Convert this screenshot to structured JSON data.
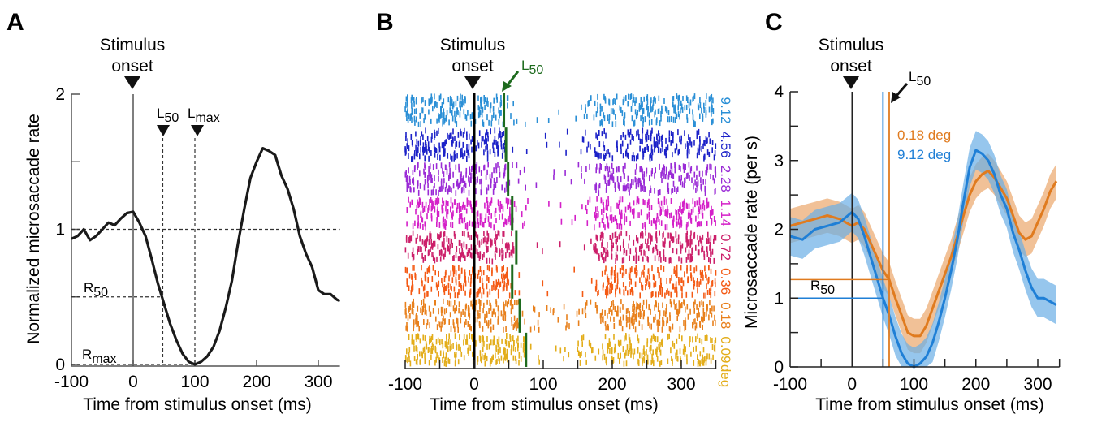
{
  "chart_data": [
    {
      "panel": "A",
      "type": "line",
      "title": "",
      "xlabel": "Time from stimulus onset (ms)",
      "ylabel": "Normalized microsaccade rate",
      "xlim": [
        -100,
        335
      ],
      "ylim": [
        0,
        2
      ],
      "xticks": [
        -100,
        0,
        100,
        200,
        300
      ],
      "xtick_labels": [
        "-100",
        "0",
        "100",
        "200",
        "300"
      ],
      "yticks": [
        0,
        0.5,
        1,
        1.5,
        2
      ],
      "ytick_labels": [
        "0",
        "",
        "1",
        "",
        "2"
      ],
      "grid": false,
      "annotations": {
        "stimulus_onset": {
          "label_line1": "Stimulus",
          "label_line2": "onset",
          "x": 0
        },
        "L50": {
          "label": "L",
          "sub": "50",
          "x": 48
        },
        "Lmax": {
          "label": "L",
          "sub": "max",
          "x": 100
        },
        "R50": {
          "label": "R",
          "sub": "50",
          "y": 0.5
        },
        "Rmax": {
          "label": "R",
          "sub": "max",
          "y": 0
        },
        "reference_line_y": 1
      },
      "series": [
        {
          "name": "Normalized rate",
          "color": "#1a1a1a",
          "x": [
            -100,
            -90,
            -80,
            -70,
            -60,
            -50,
            -40,
            -30,
            -20,
            -10,
            0,
            10,
            20,
            30,
            40,
            50,
            60,
            70,
            80,
            90,
            100,
            110,
            120,
            130,
            140,
            150,
            160,
            170,
            180,
            190,
            200,
            210,
            220,
            230,
            240,
            250,
            260,
            270,
            280,
            290,
            300,
            310,
            320,
            330,
            335
          ],
          "y": [
            0.93,
            0.95,
            1.0,
            0.92,
            0.95,
            1.0,
            1.05,
            1.03,
            1.08,
            1.12,
            1.13,
            1.05,
            0.95,
            0.78,
            0.6,
            0.45,
            0.3,
            0.18,
            0.08,
            0.02,
            0.0,
            0.02,
            0.06,
            0.13,
            0.25,
            0.42,
            0.62,
            0.9,
            1.15,
            1.38,
            1.5,
            1.6,
            1.58,
            1.55,
            1.4,
            1.3,
            1.15,
            0.95,
            0.82,
            0.72,
            0.55,
            0.52,
            0.52,
            0.48,
            0.47
          ]
        }
      ]
    },
    {
      "panel": "B",
      "type": "scatter",
      "subtype": "raster",
      "title": "",
      "xlabel": "Time from stimulus onset (ms)",
      "ylabel": "",
      "xlim": [
        -100,
        350
      ],
      "xticks": [
        -100,
        -50,
        0,
        50,
        100,
        150,
        200,
        250,
        300,
        350
      ],
      "xtick_labels": [
        "-100",
        "",
        "0",
        "",
        "100",
        "",
        "200",
        "",
        "300",
        ""
      ],
      "annotations": {
        "stimulus_onset": {
          "label_line1": "Stimulus",
          "label_line2": "onset",
          "x": 0
        },
        "L50_arrow": {
          "label": "L",
          "sub": "50",
          "color": "#1e6b1e"
        }
      },
      "unit_label": "deg",
      "rows": [
        {
          "eccentricity": "9.12",
          "color": "#2a8fd6",
          "L50_ms": 43
        },
        {
          "eccentricity": "4.56",
          "color": "#1c22c8",
          "L50_ms": 46
        },
        {
          "eccentricity": "2.28",
          "color": "#9a2ad6",
          "L50_ms": 49
        },
        {
          "eccentricity": "1.14",
          "color": "#d420c8",
          "L50_ms": 55
        },
        {
          "eccentricity": "0.72",
          "color": "#cc1f6a",
          "L50_ms": 61
        },
        {
          "eccentricity": "0.36",
          "color": "#f45a14",
          "L50_ms": 55
        },
        {
          "eccentricity": "0.18",
          "color": "#e8801c",
          "L50_ms": 66
        },
        {
          "eccentricity": "0.09",
          "color": "#e3ad1a",
          "L50_ms": 75
        }
      ]
    },
    {
      "panel": "C",
      "type": "line",
      "title": "",
      "xlabel": "Time from stimulus onset (ms)",
      "ylabel": "Microsaccade rate (per s)",
      "xlim": [
        -100,
        335
      ],
      "ylim": [
        0,
        4
      ],
      "xticks": [
        -100,
        -50,
        0,
        50,
        100,
        150,
        200,
        250,
        300,
        335
      ],
      "xtick_labels": [
        "-100",
        "",
        "0",
        "",
        "100",
        "",
        "200",
        "",
        "300",
        ""
      ],
      "yticks": [
        0,
        0.5,
        1,
        1.5,
        2,
        2.5,
        3,
        3.5,
        4
      ],
      "ytick_labels": [
        "0",
        "",
        "1",
        "",
        "2",
        "",
        "3",
        "",
        "4"
      ],
      "grid": false,
      "legend": {
        "placement": "top-center",
        "entries": [
          "0.18 deg",
          "9.12 deg"
        ]
      },
      "annotations": {
        "stimulus_onset": {
          "label_line1": "Stimulus",
          "label_line2": "onset",
          "x": 0
        },
        "L50_arrow": {
          "label": "L",
          "sub": "50"
        },
        "R50": {
          "label": "R",
          "sub": "50"
        }
      },
      "series": [
        {
          "name": "0.18 deg",
          "color": "#e07b1f",
          "band_color": "#eba66b",
          "L50_ms": 60,
          "R50": 1.27,
          "x": [
            -100,
            -80,
            -60,
            -40,
            -20,
            0,
            10,
            20,
            30,
            40,
            50,
            60,
            70,
            80,
            90,
            100,
            110,
            120,
            130,
            140,
            150,
            160,
            170,
            180,
            190,
            200,
            210,
            220,
            230,
            240,
            250,
            260,
            270,
            280,
            290,
            300,
            310,
            320,
            330
          ],
          "y": [
            2.05,
            2.1,
            2.15,
            2.2,
            2.15,
            2.05,
            2.1,
            2.0,
            1.8,
            1.6,
            1.4,
            1.27,
            1.0,
            0.75,
            0.5,
            0.45,
            0.45,
            0.6,
            0.85,
            1.1,
            1.35,
            1.6,
            1.9,
            2.2,
            2.5,
            2.7,
            2.8,
            2.85,
            2.75,
            2.6,
            2.45,
            2.2,
            1.95,
            1.85,
            1.9,
            2.1,
            2.3,
            2.55,
            2.7
          ],
          "band_halfwidth": 0.25
        },
        {
          "name": "9.12 deg",
          "color": "#1f7fd6",
          "band_color": "#6aaee6",
          "L50_ms": 50,
          "R50": 1.0,
          "x": [
            -100,
            -80,
            -60,
            -40,
            -20,
            0,
            10,
            20,
            30,
            40,
            50,
            60,
            70,
            80,
            90,
            100,
            110,
            120,
            130,
            140,
            150,
            160,
            170,
            180,
            190,
            200,
            210,
            220,
            230,
            240,
            250,
            260,
            270,
            280,
            290,
            300,
            310,
            320,
            330
          ],
          "y": [
            1.9,
            1.85,
            2.0,
            2.05,
            2.1,
            2.25,
            2.15,
            1.9,
            1.6,
            1.3,
            1.0,
            0.75,
            0.45,
            0.2,
            0.05,
            0.0,
            0.05,
            0.15,
            0.35,
            0.65,
            1.0,
            1.4,
            1.85,
            2.4,
            2.9,
            3.15,
            3.1,
            3.0,
            2.8,
            2.5,
            2.3,
            1.95,
            1.7,
            1.4,
            1.15,
            1.0,
            1.0,
            0.95,
            0.9
          ],
          "band_halfwidth": 0.28
        }
      ]
    }
  ],
  "labels": {
    "panel_a": "A",
    "panel_b": "B",
    "panel_c": "C",
    "stimulus": "Stimulus",
    "onset": "onset",
    "xlabel": "Time from stimulus onset (ms)",
    "ylabel_a": "Normalized microsaccade rate",
    "ylabel_c": "Microsaccade rate (per s)",
    "L": "L",
    "R": "R",
    "sub50": "50",
    "submax": "max",
    "legend_orange": "0.18 deg",
    "legend_blue": "9.12 deg",
    "deg": "deg"
  }
}
